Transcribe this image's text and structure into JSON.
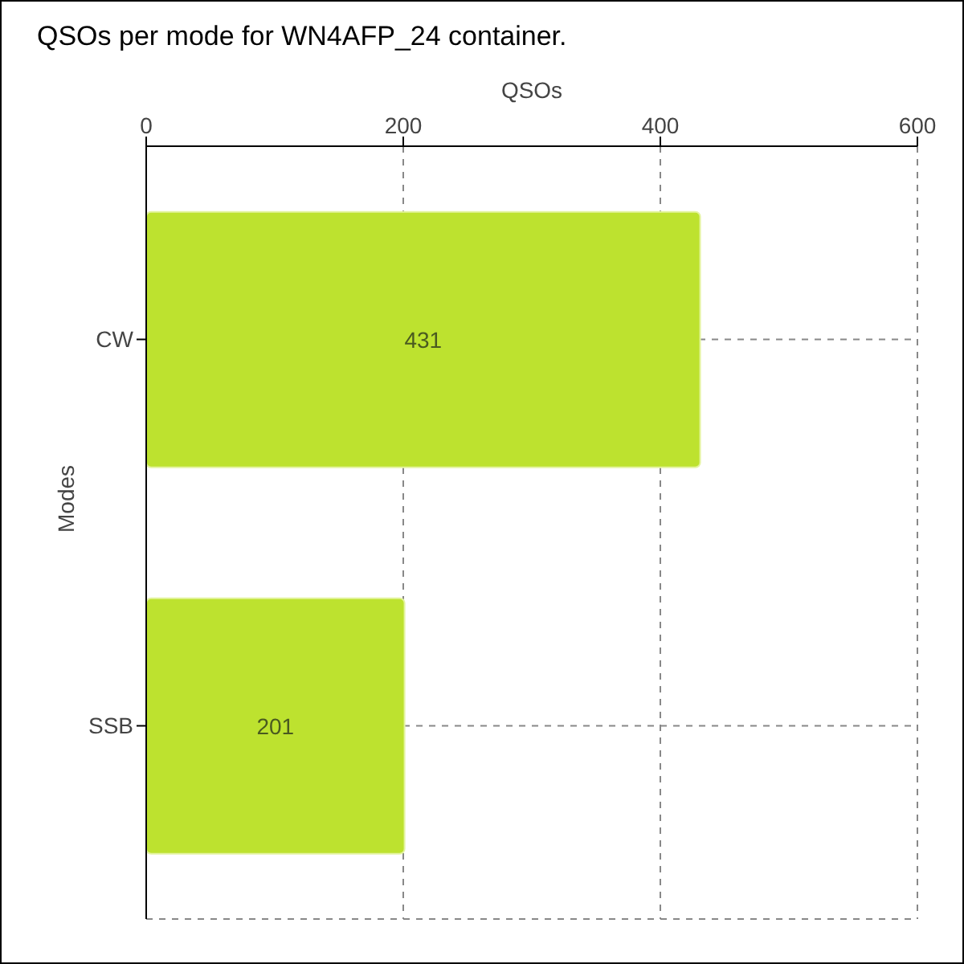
{
  "chart_data": {
    "type": "bar",
    "orientation": "horizontal",
    "title": "QSOs per mode for WN4AFP_24 container.",
    "xlabel": "QSOs",
    "ylabel": "Modes",
    "categories": [
      "CW",
      "SSB"
    ],
    "values": [
      431,
      201
    ],
    "color": "#bde22f",
    "xlim": [
      0,
      600
    ],
    "xticks": [
      0,
      200,
      400,
      600
    ],
    "grid": true,
    "data_labels": true
  }
}
